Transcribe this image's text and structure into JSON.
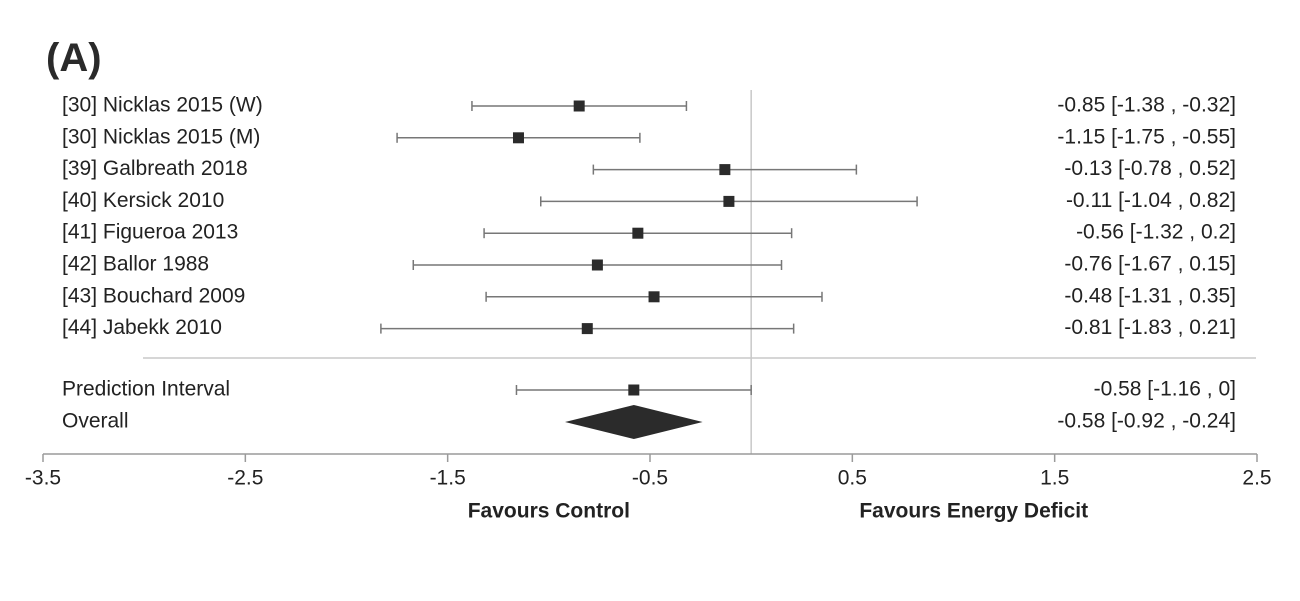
{
  "panel_label": "(A)",
  "chart_data": {
    "type": "forest",
    "panel": "(A)",
    "xlim": [
      -3.5,
      2.5
    ],
    "xticks": [
      -3.5,
      -2.5,
      -1.5,
      -0.5,
      0.5,
      1.5,
      2.5
    ],
    "xtick_labels": [
      "-3.5",
      "-2.5",
      "-1.5",
      "-0.5",
      "0.5",
      "1.5",
      "2.5"
    ],
    "reference_line": 0,
    "left_caption": "Favours Control",
    "right_caption": "Favours Energy Deficit",
    "studies": [
      {
        "label": "[30] Nicklas 2015 (W)",
        "estimate": -0.85,
        "lower": -1.38,
        "upper": -0.32,
        "ci_text": "-0.85 [-1.38 , -0.32]"
      },
      {
        "label": "[30] Nicklas 2015 (M)",
        "estimate": -1.15,
        "lower": -1.75,
        "upper": -0.55,
        "ci_text": "-1.15 [-1.75 , -0.55]"
      },
      {
        "label": "[39] Galbreath 2018",
        "estimate": -0.13,
        "lower": -0.78,
        "upper": 0.52,
        "ci_text": "-0.13 [-0.78 , 0.52]"
      },
      {
        "label": "[40] Kersick 2010",
        "estimate": -0.11,
        "lower": -1.04,
        "upper": 0.82,
        "ci_text": "-0.11 [-1.04 , 0.82]"
      },
      {
        "label": "[41] Figueroa 2013",
        "estimate": -0.56,
        "lower": -1.32,
        "upper": 0.2,
        "ci_text": "-0.56 [-1.32 , 0.2]"
      },
      {
        "label": "[42] Ballor 1988",
        "estimate": -0.76,
        "lower": -1.67,
        "upper": 0.15,
        "ci_text": "-0.76 [-1.67 , 0.15]"
      },
      {
        "label": "[43] Bouchard 2009",
        "estimate": -0.48,
        "lower": -1.31,
        "upper": 0.35,
        "ci_text": "-0.48 [-1.31 , 0.35]"
      },
      {
        "label": "[44] Jabekk 2010",
        "estimate": -0.81,
        "lower": -1.83,
        "upper": 0.21,
        "ci_text": "-0.81 [-1.83 , 0.21]"
      }
    ],
    "prediction_interval": {
      "label": "Prediction Interval",
      "estimate": -0.58,
      "lower": -1.16,
      "upper": 0,
      "ci_text": "-0.58 [-1.16 , 0]"
    },
    "overall": {
      "label": "Overall",
      "estimate": -0.58,
      "lower": -0.92,
      "upper": -0.24,
      "ci_text": "-0.58 [-0.92 , -0.24]"
    },
    "colors": {
      "marker": "#2b2b2b",
      "whisker": "#777777",
      "reference": "#c8c8c8",
      "axis": "#9a9a9a"
    }
  }
}
